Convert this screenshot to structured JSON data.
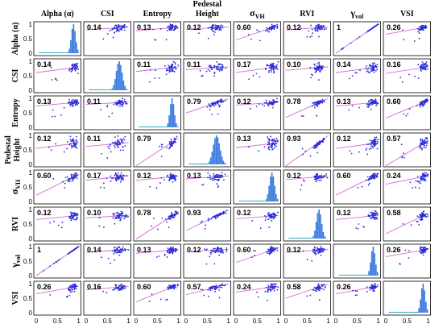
{
  "chart_data": {
    "type": "scatter-matrix",
    "variables": [
      {
        "key": "alpha",
        "label": "Alpha (α)"
      },
      {
        "key": "csi",
        "label": "CSI"
      },
      {
        "key": "entropy",
        "label": "Entropy"
      },
      {
        "key": "pedestal",
        "label": "Pedestal Height",
        "label_lines": [
          "Pedestal",
          "Height"
        ]
      },
      {
        "key": "sigma_vh",
        "label": "σVH",
        "symbol": "σ",
        "subscript": "VH"
      },
      {
        "key": "rvi",
        "label": "RVI"
      },
      {
        "key": "gamma_vol",
        "label": "γvol",
        "symbol": "γ",
        "subscript": "vol"
      },
      {
        "key": "vsi",
        "label": "VSI"
      }
    ],
    "correlations": [
      [
        null,
        "0.14",
        "0.13",
        "0.12",
        "0.60",
        "0.12",
        "1",
        "0.26"
      ],
      [
        "0.14",
        null,
        "0.11",
        "0.11",
        "0.17",
        "0.10",
        "0.14",
        "0.16"
      ],
      [
        "0.13",
        "0.11",
        null,
        "0.79",
        "0.12",
        "0.78",
        "0.13",
        "0.60"
      ],
      [
        "0.12",
        "0.11",
        "0.79",
        null,
        "0.13",
        "0.93",
        "0.12",
        "0.57"
      ],
      [
        "0.60",
        "0.17",
        "0.12",
        "0.13",
        null,
        "0.12",
        "0.60",
        "0.24"
      ],
      [
        "0.12",
        "0.10",
        "0.78",
        "0.93",
        "0.12",
        null,
        "0.12",
        "0.58"
      ],
      [
        "1",
        "0.14",
        "0.13",
        "0.12",
        "0.60",
        "0.12",
        null,
        "0.26"
      ],
      [
        "0.26",
        "0.16",
        "0.60",
        "0.57",
        "0.24",
        "0.58",
        "0.26",
        null
      ]
    ],
    "axis_range": [
      0,
      1
    ],
    "x_ticks": [
      "0",
      "0.5",
      "1"
    ],
    "y_ticks": [
      "0",
      "0.5",
      "1"
    ],
    "histogram_centers": [
      0.88,
      0.78,
      0.85,
      0.72,
      0.85,
      0.78,
      0.88,
      0.88
    ],
    "histogram_spreads": [
      0.05,
      0.07,
      0.05,
      0.08,
      0.06,
      0.06,
      0.05,
      0.05
    ],
    "colors": {
      "points": "#2b2bd6",
      "fit_line": "#d86bd6",
      "histogram": "#3a7be0",
      "histogram_low": "#2aa6c8",
      "frame": "#000000"
    },
    "grid": false,
    "legend": "none"
  }
}
